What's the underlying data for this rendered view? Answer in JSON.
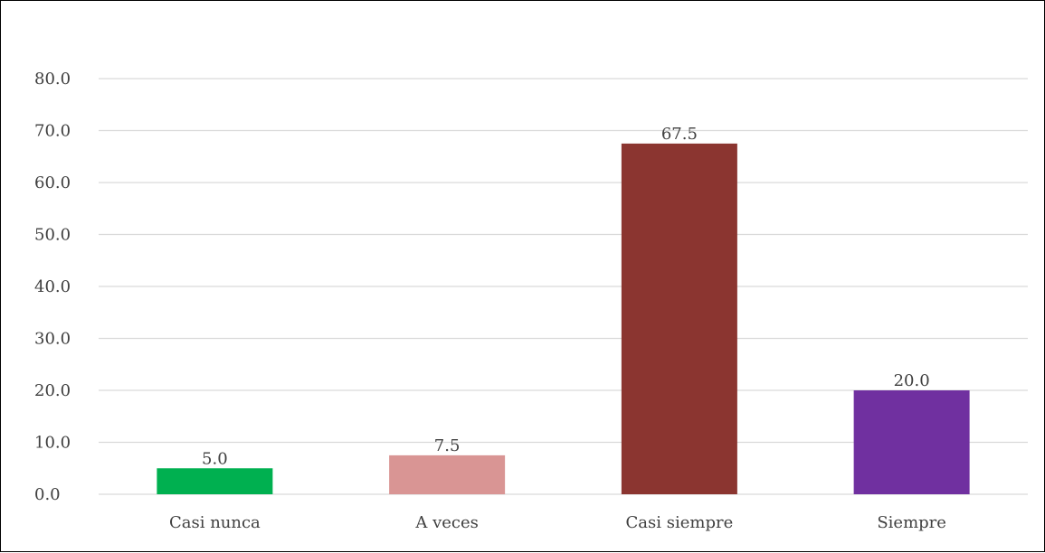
{
  "chart_data": {
    "type": "bar",
    "categories": [
      "Casi nunca",
      "A veces",
      "Casi siempre",
      "Siempre"
    ],
    "values": [
      5.0,
      7.5,
      67.5,
      20.0
    ],
    "value_labels": [
      "5.0",
      "7.5",
      "67.5",
      "20.0"
    ],
    "bar_colors": [
      "#00b050",
      "#d99594",
      "#8b3530",
      "#7030a0"
    ],
    "ylim": [
      0,
      80
    ],
    "yticks": [
      "0.0",
      "10.0",
      "20.0",
      "30.0",
      "40.0",
      "50.0",
      "60.0",
      "70.0",
      "80.0"
    ],
    "ytick_values": [
      0,
      10,
      20,
      30,
      40,
      50,
      60,
      70,
      80
    ],
    "grid": true,
    "gridline_color": "#d9d9d9",
    "title": "",
    "xlabel": "",
    "ylabel": ""
  }
}
